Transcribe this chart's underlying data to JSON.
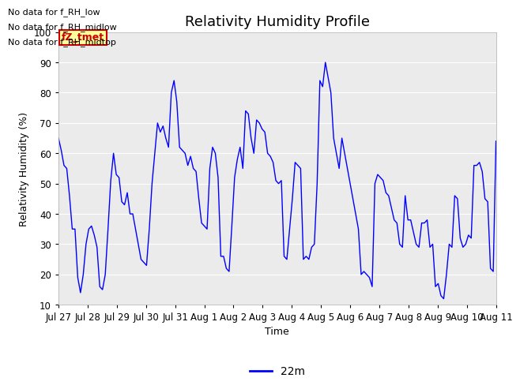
{
  "title": "Relativity Humidity Profile",
  "xlabel": "Time",
  "ylabel": "Relativity Humidity (%)",
  "ylim": [
    10,
    100
  ],
  "yticks": [
    10,
    20,
    30,
    40,
    50,
    60,
    70,
    80,
    90,
    100
  ],
  "line_color": "blue",
  "line_label": "22m",
  "background_color": "#ffffff",
  "plot_bg_color": "#ebebeb",
  "annotations": [
    "No data for f_RH_low",
    "No data for f_RH_midlow",
    "No data for f_RH_midtop"
  ],
  "legend_box_color": "#ffff99",
  "legend_box_edge": "#cc0000",
  "legend_text_color": "#cc0000",
  "legend_label": "fZ_tmet",
  "x_tick_labels": [
    "Jul 27",
    "Jul 28",
    "Jul 29",
    "Jul 30",
    "Jul 31",
    "Aug 1",
    "Aug 2",
    "Aug 3",
    "Aug 4",
    "Aug 5",
    "Aug 6",
    "Aug 7",
    "Aug 8",
    "Aug 9",
    "Aug 10",
    "Aug 11"
  ],
  "rh_values": [
    65,
    61,
    56,
    55,
    46,
    35,
    35,
    19,
    14,
    20,
    30,
    35,
    36,
    33,
    29,
    16,
    15,
    20,
    35,
    51,
    60,
    53,
    52,
    44,
    43,
    47,
    40,
    40,
    35,
    30,
    25,
    24,
    23,
    35,
    50,
    60,
    70,
    67,
    69,
    65,
    62,
    80,
    84,
    77,
    62,
    61,
    60,
    56,
    59,
    55,
    54,
    45,
    37,
    36,
    35,
    55,
    62,
    60,
    52,
    26,
    26,
    22,
    21,
    36,
    52,
    58,
    62,
    55,
    74,
    73,
    65,
    60,
    71,
    70,
    68,
    67,
    60,
    59,
    57,
    51,
    50,
    51,
    26,
    25,
    35,
    45,
    57,
    56,
    55,
    25,
    26,
    25,
    29,
    30,
    50,
    84,
    82,
    90,
    85,
    80,
    65,
    60,
    55,
    65,
    60,
    55,
    50,
    45,
    40,
    35,
    20,
    21,
    20,
    19,
    16,
    50,
    53,
    52,
    51,
    47,
    46,
    42,
    38,
    37,
    30,
    29,
    46,
    38,
    38,
    34,
    30,
    29,
    37,
    37,
    38,
    29,
    30,
    16,
    17,
    13,
    12,
    20,
    30,
    29,
    46,
    45,
    32,
    29,
    30,
    33,
    32,
    56,
    56,
    57,
    54,
    45,
    44,
    22,
    21,
    64
  ]
}
